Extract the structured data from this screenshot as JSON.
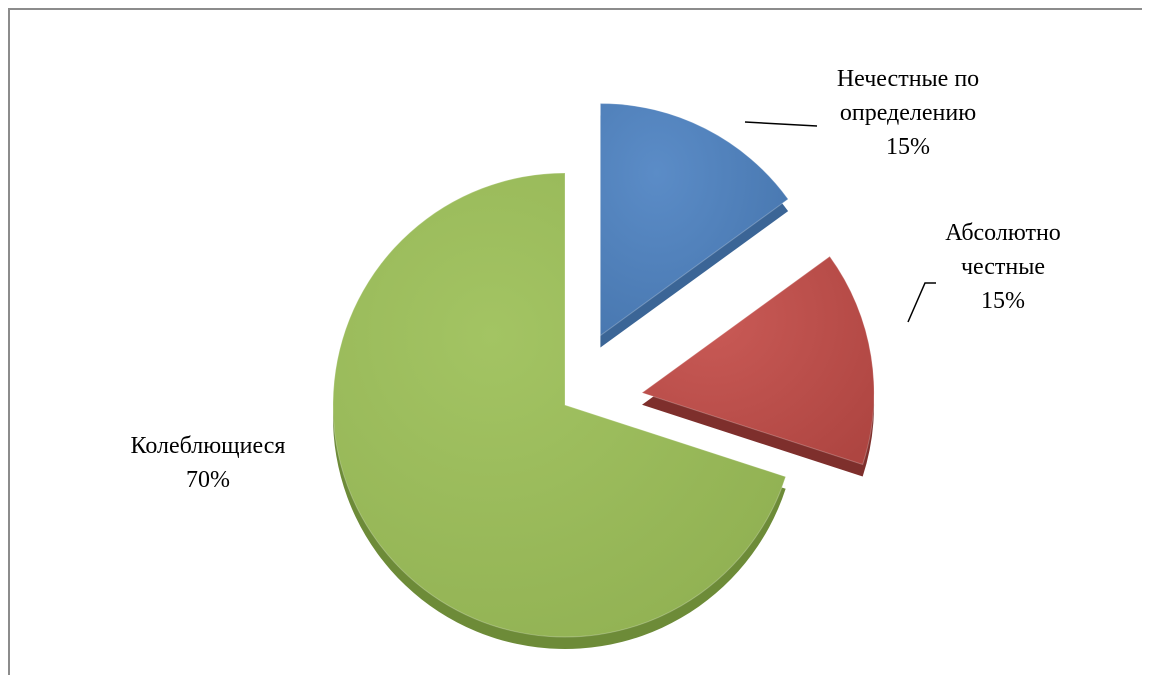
{
  "chart_data": {
    "type": "pie",
    "style": "3d-exploded",
    "title": "",
    "slices": [
      {
        "label": "Нечестные по определению",
        "label_lines": [
          "Нечестные по",
          "определению"
        ],
        "value": 15,
        "value_label": "15%",
        "color": "#4F81BD",
        "exploded": true
      },
      {
        "label": "Абсолютно честные",
        "label_lines": [
          "Абсолютно",
          "честные"
        ],
        "value": 15,
        "value_label": "15%",
        "color": "#C0504D",
        "exploded": true
      },
      {
        "label": "Колеблющиеся",
        "label_lines": [
          "Колеблющиеся"
        ],
        "value": 70,
        "value_label": "70%",
        "color": "#9BBB59",
        "exploded": false
      }
    ],
    "legend": "none",
    "data_labels": "outside-with-leader-lines"
  }
}
